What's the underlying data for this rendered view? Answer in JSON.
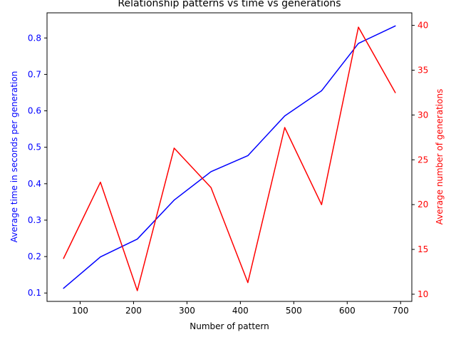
{
  "chart_data": {
    "type": "line",
    "title": "Relationship patterns vs time vs generations",
    "xlabel": "Number of pattern",
    "ylabel_left": "Average time in seconds per generation",
    "ylabel_right": "Average number of generations",
    "x": [
      69,
      138,
      207,
      276,
      345,
      414,
      483,
      552,
      621,
      690
    ],
    "xlim": [
      38,
      721
    ],
    "x_ticks": [
      100,
      200,
      300,
      400,
      500,
      600,
      700
    ],
    "ylim_left": [
      0.077,
      0.869
    ],
    "y_ticks_left": [
      0.1,
      0.2,
      0.3,
      0.4,
      0.5,
      0.6,
      0.7,
      0.8
    ],
    "ylim_right": [
      9.2,
      41.4
    ],
    "y_ticks_right": [
      10,
      15,
      20,
      25,
      30,
      35,
      40
    ],
    "series": [
      {
        "axis": "left",
        "color": "#0000ff",
        "values": [
          0.113,
          0.199,
          0.248,
          0.355,
          0.433,
          0.477,
          0.586,
          0.655,
          0.785,
          0.833
        ]
      },
      {
        "axis": "right",
        "color": "#ff0000",
        "values": [
          14.0,
          22.5,
          10.4,
          26.3,
          21.9,
          11.3,
          28.6,
          20.0,
          39.8,
          32.5
        ]
      }
    ],
    "grid": false,
    "legend": "none"
  }
}
